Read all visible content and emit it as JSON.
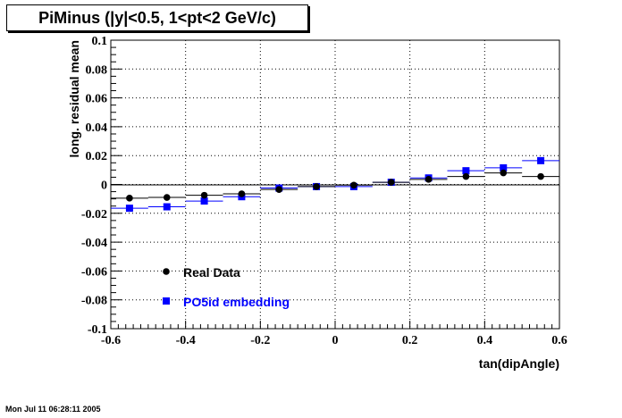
{
  "title": "PiMinus (|y|<0.5, 1<pt<2 GeV/c)",
  "footer": "Mon Jul 11 06:28:11 2005",
  "chart_data": {
    "type": "scatter",
    "xlabel": "tan(dipAngle)",
    "ylabel": "long. residual mean",
    "xlim": [
      -0.6,
      0.6
    ],
    "ylim": [
      -0.1,
      0.1
    ],
    "grid": true,
    "legend_placement": "bottom-left",
    "x_ticks": [
      "-0.6",
      "-0.4",
      "-0.2",
      "0",
      "0.2",
      "0.4",
      "0.6"
    ],
    "y_ticks": [
      "-0.1",
      "-0.08",
      "-0.06",
      "-0.04",
      "-0.02",
      "0",
      "0.02",
      "0.04",
      "0.06",
      "0.08",
      "0.1"
    ],
    "bin_half_width": 0.05,
    "x": [
      -0.55,
      -0.45,
      -0.35,
      -0.25,
      -0.15,
      -0.05,
      0.05,
      0.15,
      0.25,
      0.35,
      0.45,
      0.55
    ],
    "series": [
      {
        "name": "Real Data",
        "color": "#000000",
        "marker": "circle",
        "values": [
          -0.0095,
          -0.009,
          -0.0075,
          -0.0065,
          -0.0035,
          -0.0015,
          -0.0005,
          0.0015,
          0.0035,
          0.0055,
          0.008,
          0.0055
        ]
      },
      {
        "name": "PO5id embedding",
        "color": "#0000ff",
        "marker": "square",
        "values": [
          -0.0165,
          -0.0155,
          -0.0115,
          -0.0085,
          -0.0025,
          -0.0015,
          -0.0015,
          0.0015,
          0.0045,
          0.0095,
          0.0115,
          0.0165
        ]
      }
    ]
  }
}
